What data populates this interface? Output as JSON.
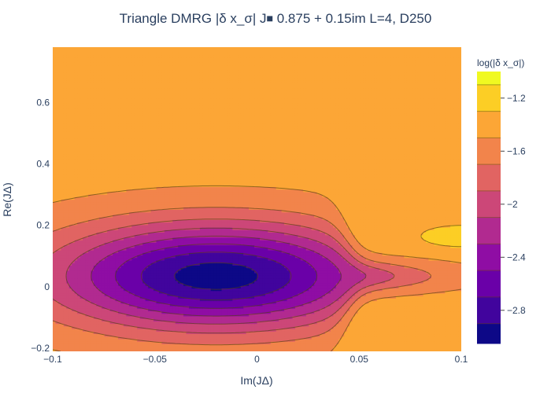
{
  "chart_data": {
    "type": "contour",
    "title": "Triangle DMRG |δ x_σ| J⏹ 0.875 + 0.15im L=4, D250",
    "xlabel": "Im(JΔ)",
    "ylabel": "Re(JΔ)",
    "xlim": [
      -0.1,
      0.1
    ],
    "ylim": [
      -0.21,
      0.78
    ],
    "x_ticks": [
      -0.1,
      -0.05,
      0,
      0.05,
      0.1
    ],
    "x_tick_labels": [
      "−0.1",
      "−0.05",
      "0",
      "0.05",
      "0.1"
    ],
    "y_ticks": [
      -0.2,
      0,
      0.2,
      0.4,
      0.6
    ],
    "y_tick_labels": [
      "−0.2",
      "0",
      "0.2",
      "0.4",
      "0.6"
    ],
    "colorbar": {
      "title": "log(|δ x_σ|)",
      "range": [
        -3.05,
        -1.0
      ],
      "ticks": [
        -1.2,
        -1.6,
        -2,
        -2.4,
        -2.8
      ],
      "tick_labels": [
        "−1.2",
        "−1.6",
        "−2",
        "−2.4",
        "−2.8"
      ],
      "levels": [
        -3.05,
        -2.9,
        -2.7,
        -2.5,
        -2.3,
        -2.1,
        -1.9,
        -1.7,
        -1.5,
        -1.3,
        -1.1,
        -1.0
      ],
      "colors": [
        "#0d0887",
        "#41049d",
        "#6a00a8",
        "#8f0da4",
        "#b12a90",
        "#cc4778",
        "#e16462",
        "#f2844b",
        "#fca636",
        "#fcce25",
        "#f0f921"
      ]
    },
    "global_minimum": {
      "x": -0.02,
      "y": 0.035,
      "value": -3.0
    },
    "local_maximum": {
      "x": 0.1,
      "y": 0.165,
      "value": -1.1
    }
  }
}
